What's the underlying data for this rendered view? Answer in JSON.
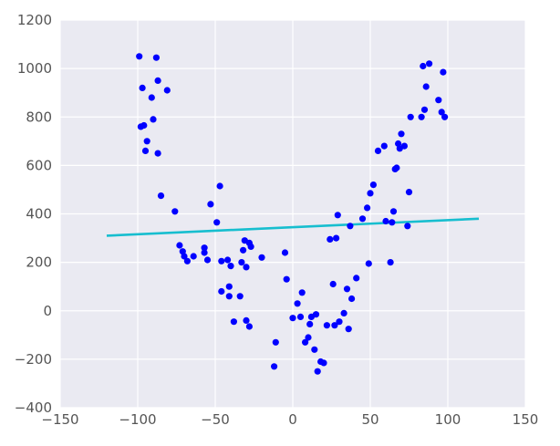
{
  "chart_data": {
    "type": "scatter",
    "title": "",
    "xlabel": "",
    "ylabel": "",
    "xlim": [
      -150,
      150
    ],
    "ylim": [
      -400,
      1200
    ],
    "xticks": [
      -150,
      -100,
      -50,
      0,
      50,
      100,
      150
    ],
    "yticks": [
      -400,
      -200,
      0,
      200,
      400,
      600,
      800,
      1000,
      1200
    ],
    "grid": true,
    "legend": "none",
    "colors": {
      "background": "#eaeaf2",
      "grid": "#ffffff",
      "points": "#0000ff",
      "line": "#17becf"
    },
    "series": [
      {
        "kind": "points",
        "x": [
          -99,
          -98,
          -96,
          -97,
          -95,
          -94,
          -91,
          -90,
          -88,
          -87,
          -87,
          -85,
          -81,
          -76,
          -73,
          -71,
          -70,
          -68,
          -64,
          -57,
          -57,
          -55,
          -53,
          -49,
          -47,
          -46,
          -46,
          -42,
          -41,
          -41,
          -40,
          -38,
          -34,
          -33,
          -32,
          -31,
          -30,
          -30,
          -28,
          -28,
          -27,
          -20,
          -12,
          -11,
          -5,
          -4,
          0,
          3,
          5,
          6,
          8,
          10,
          11,
          12,
          14,
          15,
          16,
          18,
          20,
          22,
          24,
          26,
          27,
          28,
          29,
          30,
          33,
          35,
          36,
          37,
          38,
          41,
          45,
          48,
          49,
          50,
          52,
          55,
          59,
          60,
          63,
          64,
          65,
          66,
          67,
          68,
          69,
          70,
          72,
          74,
          75,
          76,
          83,
          84,
          85,
          86,
          88,
          94,
          96,
          97,
          98
        ],
        "y": [
          1050,
          760,
          765,
          920,
          660,
          700,
          880,
          790,
          1045,
          950,
          650,
          475,
          910,
          410,
          270,
          245,
          225,
          205,
          225,
          260,
          240,
          210,
          440,
          365,
          515,
          205,
          80,
          210,
          60,
          100,
          185,
          -45,
          60,
          200,
          250,
          290,
          -40,
          180,
          280,
          -65,
          265,
          220,
          -230,
          -130,
          240,
          130,
          -30,
          30,
          -25,
          75,
          -130,
          -110,
          -55,
          -25,
          -160,
          -15,
          -250,
          -210,
          -215,
          -60,
          295,
          110,
          -60,
          300,
          395,
          -45,
          -10,
          90,
          -75,
          350,
          50,
          135,
          380,
          425,
          195,
          485,
          520,
          660,
          680,
          370,
          200,
          365,
          410,
          585,
          590,
          690,
          670,
          730,
          680,
          350,
          490,
          800,
          800,
          1010,
          830,
          925,
          1020,
          870,
          820,
          985,
          800
        ]
      },
      {
        "kind": "line",
        "x": [
          -120,
          120
        ],
        "y": [
          310,
          380
        ]
      }
    ]
  }
}
